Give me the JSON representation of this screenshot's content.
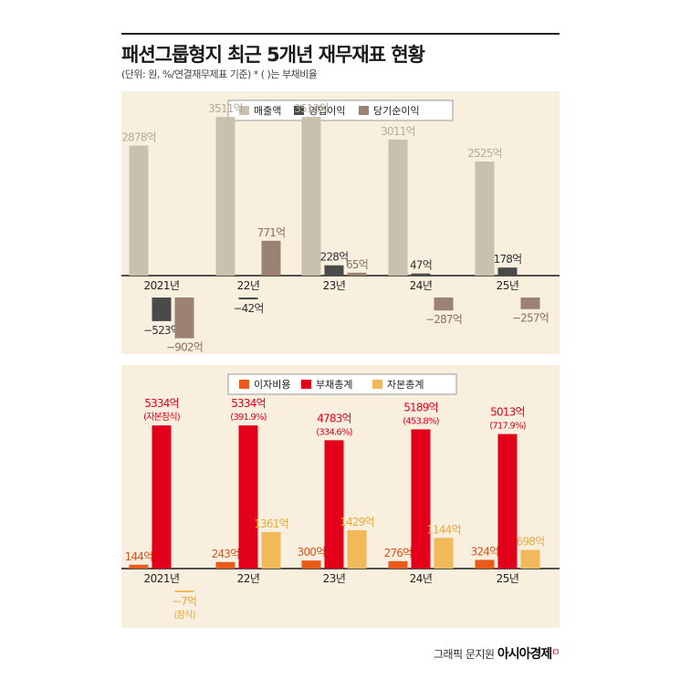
{
  "header": {
    "title": "패션그룹형지 최근 5개년 재무재표 현황",
    "subtitle": "(단위: 원, %/연결재무제표 기준)  * ( )는 부채비율"
  },
  "credit": {
    "byline": "그래픽 문지원",
    "brand": "아시아경제",
    "mark": "ㅁ"
  },
  "chart_data": [
    {
      "type": "bar",
      "categories": [
        "2021년",
        "22년",
        "23년",
        "24년",
        "25년"
      ],
      "unit": "억",
      "series": [
        {
          "name": "매출액",
          "color": "#c9c0ad",
          "label_color": "#b5ac9a",
          "values": [
            2878,
            3511,
            3513,
            3011,
            2525
          ]
        },
        {
          "name": "영업이익",
          "color": "#4a4a4a",
          "label_color": "#333333",
          "values": [
            -523,
            -42,
            228,
            47,
            178
          ]
        },
        {
          "name": "당기순이익",
          "color": "#9b8272",
          "label_color": "#8a7060",
          "values": [
            -902,
            771,
            65,
            -287,
            -257
          ]
        }
      ]
    },
    {
      "type": "bar",
      "categories": [
        "2021년",
        "22년",
        "23년",
        "24년",
        "25년"
      ],
      "unit": "억",
      "series": [
        {
          "name": "이자비용",
          "color": "#e95a1b",
          "label_color": "#d9531b",
          "values": [
            144,
            243,
            300,
            276,
            324
          ]
        },
        {
          "name": "부채총계",
          "color": "#e2001a",
          "label_color": "#e2001a",
          "values": [
            5334,
            5334,
            4783,
            5189,
            5013
          ],
          "notes": [
            "(자본잠식)",
            "(391.9%)",
            "(334.6%)",
            "(453.8%)",
            "(717.9%)"
          ]
        },
        {
          "name": "자본총계",
          "color": "#f2b95a",
          "label_color": "#e8a83c",
          "values": [
            -7,
            1361,
            1429,
            1144,
            698
          ],
          "notes": [
            "(잠식)",
            "",
            "",
            "",
            ""
          ]
        }
      ]
    }
  ]
}
